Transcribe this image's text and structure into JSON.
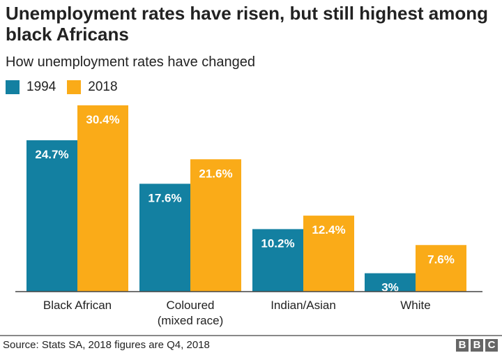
{
  "title": "Unemployment rates have risen, but still highest among black Africans",
  "subtitle": "How unemployment rates have changed",
  "source": "Source: Stats SA, 2018 figures are Q4, 2018",
  "logo": "BBC",
  "colors": {
    "1994": "#1380A1",
    "2018": "#FAAB18"
  },
  "chart_data": {
    "type": "bar",
    "categories": [
      "Black African",
      "Coloured\n(mixed race)",
      "Indian/Asian",
      "White"
    ],
    "series": [
      {
        "name": "1994",
        "values": [
          24.7,
          17.6,
          10.2,
          3
        ],
        "labels": [
          "24.7%",
          "17.6%",
          "10.2%",
          "3%"
        ]
      },
      {
        "name": "2018",
        "values": [
          30.4,
          21.6,
          12.4,
          7.6
        ],
        "labels": [
          "30.4%",
          "21.6%",
          "12.4%",
          "7.6%"
        ]
      }
    ],
    "ylim": [
      0,
      30.4
    ],
    "grid": false,
    "legend": "top-left"
  }
}
